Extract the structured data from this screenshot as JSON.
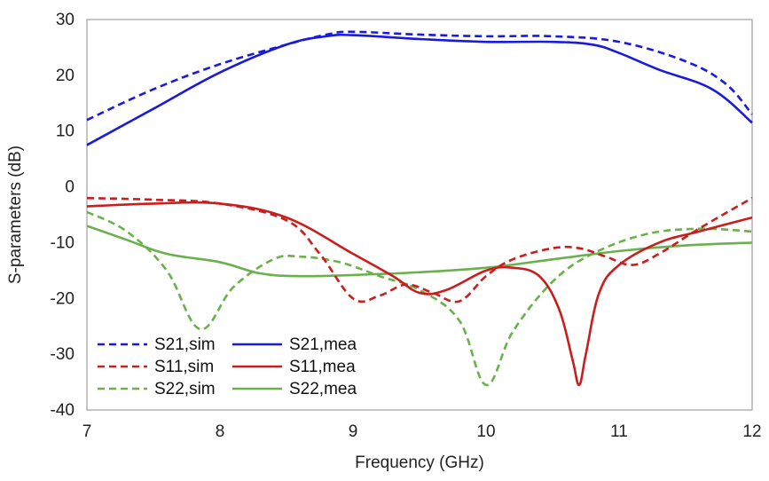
{
  "chart_data": {
    "type": "line",
    "xlabel": "Frequency (GHz)",
    "ylabel": "S-parameters (dB)",
    "xlim": [
      7,
      12
    ],
    "ylim": [
      -40,
      30
    ],
    "xticks": [
      7,
      8,
      9,
      10,
      11,
      12
    ],
    "yticks": [
      -40,
      -30,
      -20,
      -10,
      0,
      10,
      20,
      30
    ],
    "grid": false,
    "legend_position": "bottom-left",
    "series": [
      {
        "name": "S21,sim",
        "color": "#1a1adc",
        "style": "dashed",
        "x": [
          7,
          7.5,
          8,
          8.5,
          8.8,
          9,
          9.5,
          10,
          10.5,
          11,
          11.5,
          11.8,
          12
        ],
        "y": [
          12,
          17.5,
          22,
          25.5,
          27.3,
          27.8,
          27.3,
          27,
          27,
          26,
          22.5,
          18.5,
          13
        ]
      },
      {
        "name": "S21,mea",
        "color": "#1a1adc",
        "style": "solid",
        "x": [
          7,
          7.5,
          8,
          8.5,
          8.8,
          9,
          9.5,
          10,
          10.5,
          10.8,
          11,
          11.3,
          11.7,
          12
        ],
        "y": [
          7.5,
          14,
          20.5,
          25.5,
          27,
          27.2,
          26.5,
          26,
          26,
          25.5,
          24,
          21,
          17.5,
          11.5
        ]
      },
      {
        "name": "S11,sim",
        "color": "#c81e1e",
        "style": "dashed",
        "x": [
          7,
          7.5,
          8,
          8.5,
          8.75,
          9,
          9.2,
          9.4,
          9.6,
          9.8,
          10,
          10.2,
          10.5,
          10.7,
          10.9,
          11.1,
          11.3,
          11.6,
          12
        ],
        "y": [
          -2,
          -2.3,
          -3,
          -6,
          -12,
          -20,
          -19.5,
          -17.5,
          -19,
          -20.5,
          -16,
          -13,
          -11,
          -11,
          -12.5,
          -14,
          -12,
          -7.5,
          -2
        ]
      },
      {
        "name": "S11,mea",
        "color": "#c81e1e",
        "style": "solid",
        "x": [
          7,
          7.5,
          8,
          8.5,
          9,
          9.3,
          9.5,
          9.7,
          10,
          10.2,
          10.4,
          10.55,
          10.65,
          10.7,
          10.75,
          10.85,
          11,
          11.3,
          11.6,
          12
        ],
        "y": [
          -3.5,
          -3,
          -3,
          -5.5,
          -12,
          -16,
          -19,
          -18.5,
          -15,
          -14.5,
          -16,
          -22,
          -31,
          -35.5,
          -30,
          -19,
          -14,
          -10,
          -8,
          -5.5
        ]
      },
      {
        "name": "S22,sim",
        "color": "#6ab04c",
        "style": "dashed",
        "x": [
          7,
          7.3,
          7.6,
          7.85,
          8.1,
          8.4,
          8.6,
          8.9,
          9.2,
          9.5,
          9.8,
          10,
          10.2,
          10.5,
          10.8,
          11.2,
          11.6,
          12
        ],
        "y": [
          -4.5,
          -8,
          -15,
          -25.5,
          -18,
          -13,
          -12.5,
          -13.5,
          -16,
          -18.5,
          -24,
          -35.5,
          -26,
          -17,
          -12,
          -8.5,
          -7.5,
          -8
        ]
      },
      {
        "name": "S22,mea",
        "color": "#6ab04c",
        "style": "solid",
        "x": [
          7,
          7.3,
          7.6,
          8,
          8.3,
          8.6,
          9,
          9.5,
          10,
          10.5,
          11,
          11.5,
          12
        ],
        "y": [
          -7,
          -9.5,
          -12,
          -13.5,
          -15.5,
          -16,
          -15.8,
          -15.3,
          -14.5,
          -13,
          -11.5,
          -10.5,
          -10
        ]
      }
    ]
  }
}
